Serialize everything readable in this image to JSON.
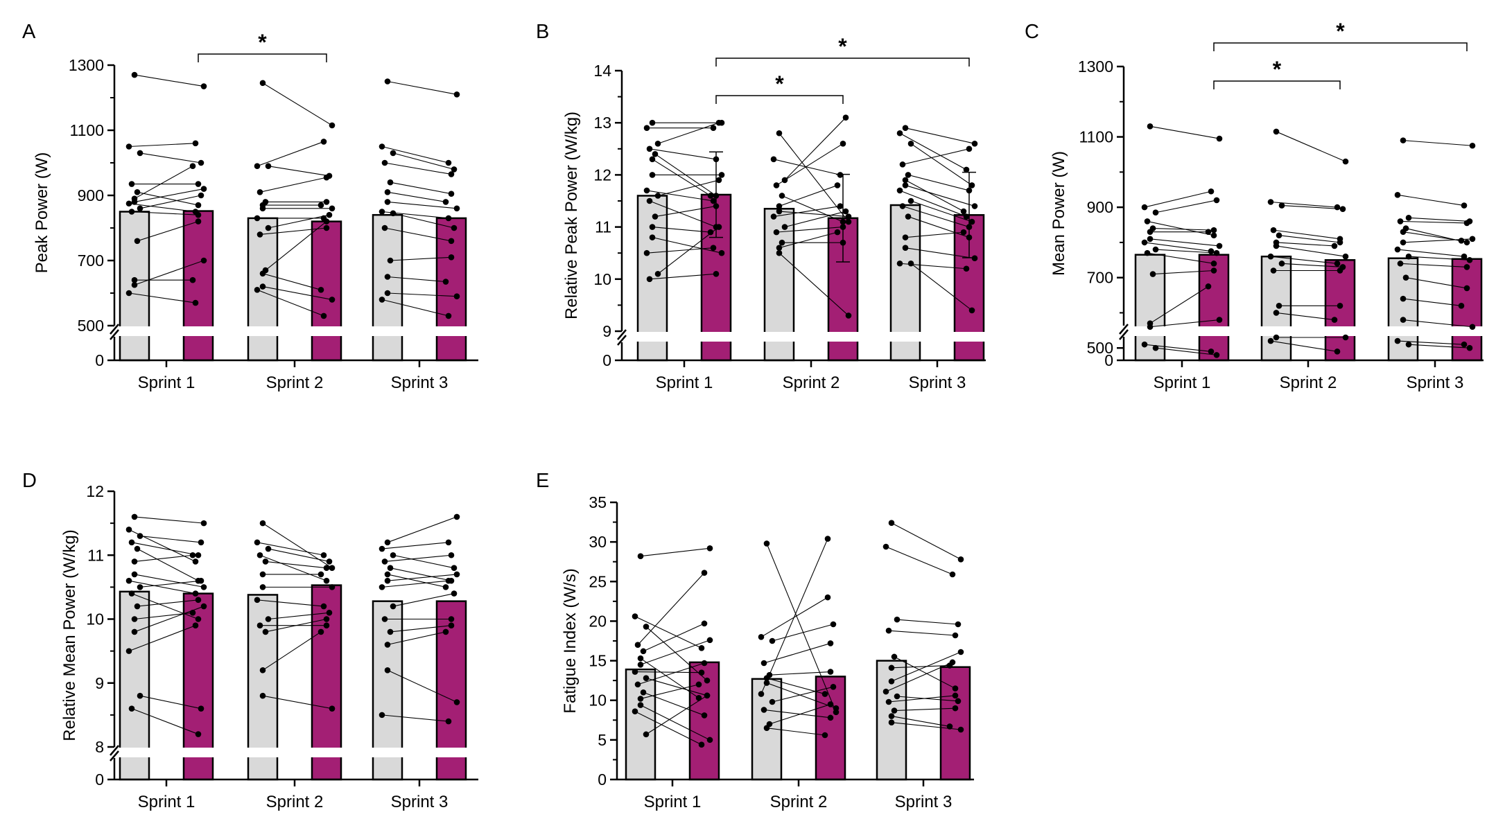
{
  "colors": {
    "control": "#d9d9d9",
    "treatment": "#a31f74",
    "axis": "#000000",
    "dot": "#000000"
  },
  "chart_data": [
    {
      "panel": "A",
      "type": "bar",
      "title": "",
      "xlabel": "",
      "ylabel": "Peak Power (W)",
      "categories": [
        "Sprint 1",
        "Sprint 2",
        "Sprint 3"
      ],
      "axis_break": true,
      "y_break": 500,
      "ylim": [
        500,
        1300
      ],
      "yticks": [
        "1300",
        "1100",
        "900",
        "700",
        "500"
      ],
      "zero_label": "0",
      "minor_ticks": true,
      "series": [
        {
          "name": "group-1",
          "values": [
            850,
            830,
            840
          ]
        },
        {
          "name": "group-2",
          "values": [
            852,
            820,
            830
          ]
        }
      ],
      "error_bars": false,
      "significance": [
        {
          "from": 1,
          "to": 2,
          "label": "*"
        }
      ],
      "paired_points": [
        [
          [
            1270,
            1235
          ],
          [
            1050,
            1060
          ],
          [
            1030,
            1000
          ],
          [
            935,
            935
          ],
          [
            910,
            870
          ],
          [
            890,
            990
          ],
          [
            880,
            920
          ],
          [
            875,
            850
          ],
          [
            860,
            900
          ],
          [
            850,
            840
          ],
          [
            760,
            820
          ],
          [
            640,
            640
          ],
          [
            625,
            700
          ],
          [
            600,
            570
          ]
        ],
        [
          [
            1245,
            1115
          ],
          [
            990,
            1065
          ],
          [
            990,
            960
          ],
          [
            910,
            955
          ],
          [
            880,
            880
          ],
          [
            870,
            870
          ],
          [
            860,
            860
          ],
          [
            830,
            830
          ],
          [
            800,
            840
          ],
          [
            780,
            800
          ],
          [
            670,
            820
          ],
          [
            660,
            610
          ],
          [
            620,
            580
          ],
          [
            610,
            530
          ]
        ],
        [
          [
            1250,
            1210
          ],
          [
            1050,
            1000
          ],
          [
            1030,
            980
          ],
          [
            1000,
            965
          ],
          [
            940,
            905
          ],
          [
            910,
            880
          ],
          [
            880,
            860
          ],
          [
            850,
            830
          ],
          [
            845,
            800
          ],
          [
            800,
            760
          ],
          [
            700,
            710
          ],
          [
            650,
            635
          ],
          [
            600,
            590
          ],
          [
            580,
            530
          ]
        ]
      ]
    },
    {
      "panel": "B",
      "type": "bar",
      "title": "",
      "xlabel": "",
      "ylabel": "Relative Peak Power (W/kg)",
      "categories": [
        "Sprint 1",
        "Sprint 2",
        "Sprint 3"
      ],
      "axis_break": true,
      "y_break": 9,
      "ylim": [
        9,
        14
      ],
      "yticks": [
        "14",
        "13",
        "12",
        "11",
        "10",
        "9"
      ],
      "zero_label": "0",
      "minor_ticks": true,
      "series": [
        {
          "name": "group-1",
          "values": [
            11.6,
            11.35,
            11.42
          ]
        },
        {
          "name": "group-2",
          "values": [
            11.62,
            11.17,
            11.23
          ]
        }
      ],
      "error_bars": true,
      "errors": [
        [
          0,
          0.82
        ],
        [
          0,
          0.84
        ],
        [
          0,
          0.82
        ]
      ],
      "significance": [
        {
          "from": 1,
          "to": 2,
          "label": "*"
        },
        {
          "from": 1,
          "to": 3,
          "label": "*"
        }
      ],
      "paired_points": [
        [
          [
            13.0,
            13.0
          ],
          [
            12.9,
            12.9
          ],
          [
            12.6,
            13.0
          ],
          [
            12.5,
            12.3
          ],
          [
            12.4,
            11.6
          ],
          [
            12.3,
            11.6
          ],
          [
            12.0,
            12.0
          ],
          [
            11.7,
            11.5
          ],
          [
            11.6,
            11.9
          ],
          [
            11.5,
            11.0
          ],
          [
            11.2,
            11.4
          ],
          [
            11.0,
            10.9
          ],
          [
            10.8,
            10.5
          ],
          [
            10.5,
            10.6
          ],
          [
            10.1,
            11.0
          ],
          [
            10.0,
            10.1
          ]
        ],
        [
          [
            12.8,
            11.1
          ],
          [
            12.3,
            12.0
          ],
          [
            11.9,
            13.1
          ],
          [
            11.8,
            12.6
          ],
          [
            11.6,
            11.1
          ],
          [
            11.4,
            11.8
          ],
          [
            11.3,
            11.2
          ],
          [
            11.2,
            11.4
          ],
          [
            11.0,
            11.3
          ],
          [
            10.9,
            11.0
          ],
          [
            10.7,
            10.7
          ],
          [
            10.6,
            10.9
          ],
          [
            10.5,
            9.3
          ]
        ],
        [
          [
            12.9,
            12.6
          ],
          [
            12.8,
            12.1
          ],
          [
            12.6,
            11.8
          ],
          [
            12.2,
            12.5
          ],
          [
            12.0,
            11.7
          ],
          [
            11.9,
            11.3
          ],
          [
            11.8,
            11.4
          ],
          [
            11.7,
            11.2
          ],
          [
            11.5,
            11.1
          ],
          [
            11.4,
            11.0
          ],
          [
            11.2,
            10.8
          ],
          [
            10.8,
            10.9
          ],
          [
            10.6,
            10.4
          ],
          [
            10.3,
            10.2
          ],
          [
            10.3,
            9.4
          ]
        ]
      ]
    },
    {
      "panel": "C",
      "type": "bar",
      "title": "",
      "xlabel": "",
      "ylabel": "Mean Power (W)",
      "categories": [
        "Sprint 1",
        "Sprint 2",
        "Sprint 3"
      ],
      "axis_break": true,
      "y_break": 400,
      "ylim": [
        400,
        1300
      ],
      "yticks": [
        "1300",
        "1100",
        "900",
        "700",
        "500"
      ],
      "zero_label": "0",
      "minor_ticks": true,
      "series": [
        {
          "name": "group-1",
          "values": [
            765,
            760,
            755
          ]
        },
        {
          "name": "group-2",
          "values": [
            765,
            750,
            753
          ]
        }
      ],
      "error_bars": false,
      "significance": [
        {
          "from": 1,
          "to": 2,
          "label": "*"
        },
        {
          "from": 1,
          "to": 3,
          "label": "*"
        }
      ],
      "paired_points": [
        [
          [
            1130,
            1095
          ],
          [
            900,
            945
          ],
          [
            885,
            920
          ],
          [
            860,
            820
          ],
          [
            840,
            835
          ],
          [
            830,
            830
          ],
          [
            810,
            790
          ],
          [
            800,
            775
          ],
          [
            780,
            770
          ],
          [
            770,
            740
          ],
          [
            710,
            720
          ],
          [
            570,
            675
          ],
          [
            560,
            580
          ],
          [
            510,
            490
          ],
          [
            500,
            480
          ]
        ],
        [
          [
            1115,
            1030
          ],
          [
            915,
            900
          ],
          [
            905,
            895
          ],
          [
            835,
            810
          ],
          [
            820,
            800
          ],
          [
            800,
            790
          ],
          [
            790,
            760
          ],
          [
            760,
            740
          ],
          [
            740,
            730
          ],
          [
            720,
            720
          ],
          [
            620,
            620
          ],
          [
            600,
            580
          ],
          [
            530,
            530
          ],
          [
            520,
            490
          ]
        ],
        [
          [
            1090,
            1075
          ],
          [
            935,
            905
          ],
          [
            870,
            860
          ],
          [
            860,
            855
          ],
          [
            840,
            800
          ],
          [
            830,
            805
          ],
          [
            800,
            810
          ],
          [
            780,
            760
          ],
          [
            760,
            750
          ],
          [
            740,
            730
          ],
          [
            700,
            670
          ],
          [
            640,
            620
          ],
          [
            580,
            560
          ],
          [
            520,
            510
          ],
          [
            510,
            500
          ]
        ]
      ]
    },
    {
      "panel": "D",
      "type": "bar",
      "title": "",
      "xlabel": "",
      "ylabel": "Relative Mean Power (W/kg)",
      "categories": [
        "Sprint 1",
        "Sprint 2",
        "Sprint 3"
      ],
      "axis_break": true,
      "y_break": 8,
      "ylim": [
        8,
        12
      ],
      "yticks": [
        "12",
        "11",
        "10",
        "9",
        "8"
      ],
      "zero_label": "0",
      "minor_ticks": true,
      "series": [
        {
          "name": "group-1",
          "values": [
            10.43,
            10.38,
            10.28
          ]
        },
        {
          "name": "group-2",
          "values": [
            10.4,
            10.53,
            10.28
          ]
        }
      ],
      "error_bars": false,
      "significance": [],
      "paired_points": [
        [
          [
            11.6,
            11.5
          ],
          [
            11.4,
            10.9
          ],
          [
            11.3,
            11.2
          ],
          [
            11.2,
            11.0
          ],
          [
            11.1,
            10.6
          ],
          [
            10.9,
            11.0
          ],
          [
            10.7,
            10.5
          ],
          [
            10.6,
            10.4
          ],
          [
            10.5,
            10.6
          ],
          [
            10.4,
            10.0
          ],
          [
            10.2,
            10.3
          ],
          [
            10.0,
            10.1
          ],
          [
            9.8,
            10.2
          ],
          [
            9.5,
            9.9
          ],
          [
            8.8,
            8.6
          ],
          [
            8.6,
            8.2
          ]
        ],
        [
          [
            11.5,
            10.8
          ],
          [
            11.2,
            11.0
          ],
          [
            11.1,
            10.9
          ],
          [
            11.0,
            10.6
          ],
          [
            10.9,
            10.8
          ],
          [
            10.7,
            10.7
          ],
          [
            10.5,
            10.5
          ],
          [
            10.3,
            10.2
          ],
          [
            10.0,
            10.1
          ],
          [
            9.9,
            9.9
          ],
          [
            9.8,
            10.0
          ],
          [
            9.2,
            9.8
          ],
          [
            8.8,
            8.6
          ]
        ],
        [
          [
            11.2,
            11.6
          ],
          [
            11.1,
            11.2
          ],
          [
            11.0,
            10.8
          ],
          [
            10.9,
            11.0
          ],
          [
            10.8,
            10.6
          ],
          [
            10.7,
            10.5
          ],
          [
            10.6,
            10.7
          ],
          [
            10.5,
            10.6
          ],
          [
            10.2,
            10.4
          ],
          [
            10.0,
            10.0
          ],
          [
            9.8,
            9.9
          ],
          [
            9.6,
            9.8
          ],
          [
            9.2,
            8.7
          ],
          [
            8.5,
            8.4
          ]
        ]
      ]
    },
    {
      "panel": "E",
      "type": "bar",
      "title": "",
      "xlabel": "",
      "ylabel": "Fatigue Index (W/s)",
      "categories": [
        "Sprint 1",
        "Sprint 2",
        "Sprint 3"
      ],
      "axis_break": false,
      "ylim": [
        0,
        35
      ],
      "yticks": [
        "35",
        "30",
        "25",
        "20",
        "15",
        "10",
        "5",
        "0"
      ],
      "minor_ticks": true,
      "series": [
        {
          "name": "group-1",
          "values": [
            13.9,
            12.7,
            15.0
          ]
        },
        {
          "name": "group-2",
          "values": [
            14.8,
            13.0,
            14.2
          ]
        }
      ],
      "error_bars": false,
      "significance": [],
      "paired_points": [
        [
          [
            28.2,
            29.2
          ],
          [
            20.6,
            16.6
          ],
          [
            19.3,
            12.5
          ],
          [
            17.0,
            26.1
          ],
          [
            16.2,
            19.7
          ],
          [
            15.3,
            10.3
          ],
          [
            14.5,
            17.6
          ],
          [
            13.6,
            13.5
          ],
          [
            12.8,
            10.6
          ],
          [
            12.0,
            14.7
          ],
          [
            11.0,
            8.1
          ],
          [
            10.2,
            12.0
          ],
          [
            9.4,
            5.0
          ],
          [
            8.6,
            4.4
          ],
          [
            5.7,
            10.6
          ]
        ],
        [
          [
            29.8,
            8.5
          ],
          [
            18.0,
            23.0
          ],
          [
            17.5,
            19.6
          ],
          [
            14.7,
            17.2
          ],
          [
            13.2,
            13.6
          ],
          [
            12.8,
            10.8
          ],
          [
            12.2,
            9.0
          ],
          [
            10.8,
            30.4
          ],
          [
            9.8,
            11.7
          ],
          [
            8.8,
            7.8
          ],
          [
            7.0,
            9.5
          ],
          [
            6.5,
            5.6
          ]
        ],
        [
          [
            32.4,
            27.8
          ],
          [
            29.4,
            25.9
          ],
          [
            20.2,
            19.6
          ],
          [
            18.8,
            18.2
          ],
          [
            15.5,
            11.5
          ],
          [
            14.1,
            14.4
          ],
          [
            12.4,
            16.1
          ],
          [
            11.1,
            14.8
          ],
          [
            10.5,
            9.9
          ],
          [
            9.8,
            10.6
          ],
          [
            8.7,
            9.0
          ],
          [
            8.0,
            6.7
          ],
          [
            7.2,
            6.3
          ]
        ]
      ]
    }
  ]
}
